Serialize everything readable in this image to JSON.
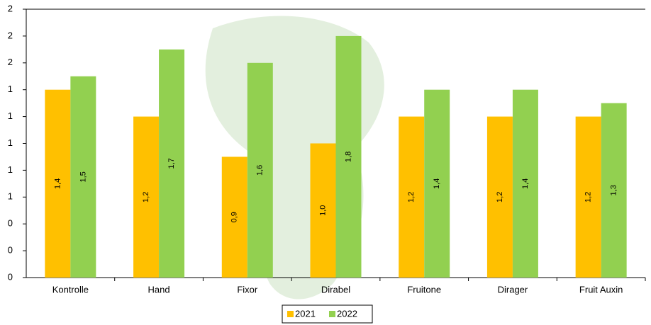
{
  "chart_data": {
    "type": "bar",
    "categories": [
      "Kontrolle",
      "Hand",
      "Fixor",
      "Dirabel",
      "Fruitone",
      "Dirager",
      "Fruit Auxin"
    ],
    "series": [
      {
        "name": "2021",
        "color": "#ffc000",
        "values": [
          1.4,
          1.2,
          0.9,
          1.0,
          1.2,
          1.2,
          1.2
        ],
        "value_labels": [
          "1,4",
          "1,2",
          "0,9",
          "1,0",
          "1,2",
          "1,2",
          "1,2"
        ]
      },
      {
        "name": "2022",
        "color": "#92d050",
        "values": [
          1.5,
          1.7,
          1.6,
          1.8,
          1.4,
          1.4,
          1.3
        ],
        "value_labels": [
          "1,5",
          "1,7",
          "1,6",
          "1,8",
          "1,4",
          "1,4",
          "1,3"
        ]
      }
    ],
    "ylim": [
      0,
      2
    ],
    "yticks": [
      {
        "value": 0,
        "label": "0"
      },
      {
        "value": 0.2,
        "label": "0"
      },
      {
        "value": 0.4,
        "label": "0"
      },
      {
        "value": 0.6,
        "label": "1"
      },
      {
        "value": 0.8,
        "label": "1"
      },
      {
        "value": 1.0,
        "label": "1"
      },
      {
        "value": 1.2,
        "label": "1"
      },
      {
        "value": 1.4,
        "label": "1"
      },
      {
        "value": 1.6,
        "label": "2"
      },
      {
        "value": 1.8,
        "label": "2"
      },
      {
        "value": 2.0,
        "label": "2"
      }
    ],
    "legend": "bottom"
  }
}
